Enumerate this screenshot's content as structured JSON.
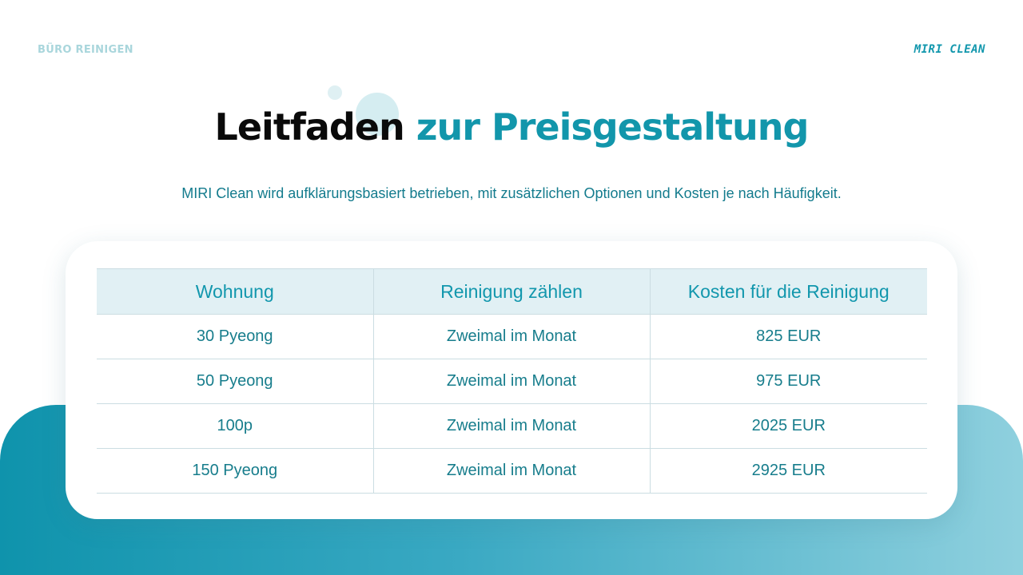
{
  "header": {
    "left_label": "BÜRO REINIGEN",
    "brand": "MIRI CLEAN"
  },
  "title": {
    "part1": "Leitfaden",
    "part2": "zur Preisgestaltung"
  },
  "subtitle": "MIRI Clean wird aufklärungsbasiert betrieben, mit zusätzlichen Optionen und Kosten je nach Häufigkeit.",
  "table": {
    "headers": [
      "Wohnung",
      "Reinigung zählen",
      "Kosten für die Reinigung"
    ],
    "rows": [
      [
        "30 Pyeong",
        "Zweimal im Monat",
        "825 EUR"
      ],
      [
        "50 Pyeong",
        "Zweimal im Monat",
        "975 EUR"
      ],
      [
        "100p",
        "Zweimal im Monat",
        "2025 EUR"
      ],
      [
        "150 Pyeong",
        "Zweimal im Monat",
        "2925 EUR"
      ]
    ]
  },
  "colors": {
    "accent": "#1296ab",
    "text_teal": "#177d8c",
    "header_bg": "#e1f0f4"
  }
}
